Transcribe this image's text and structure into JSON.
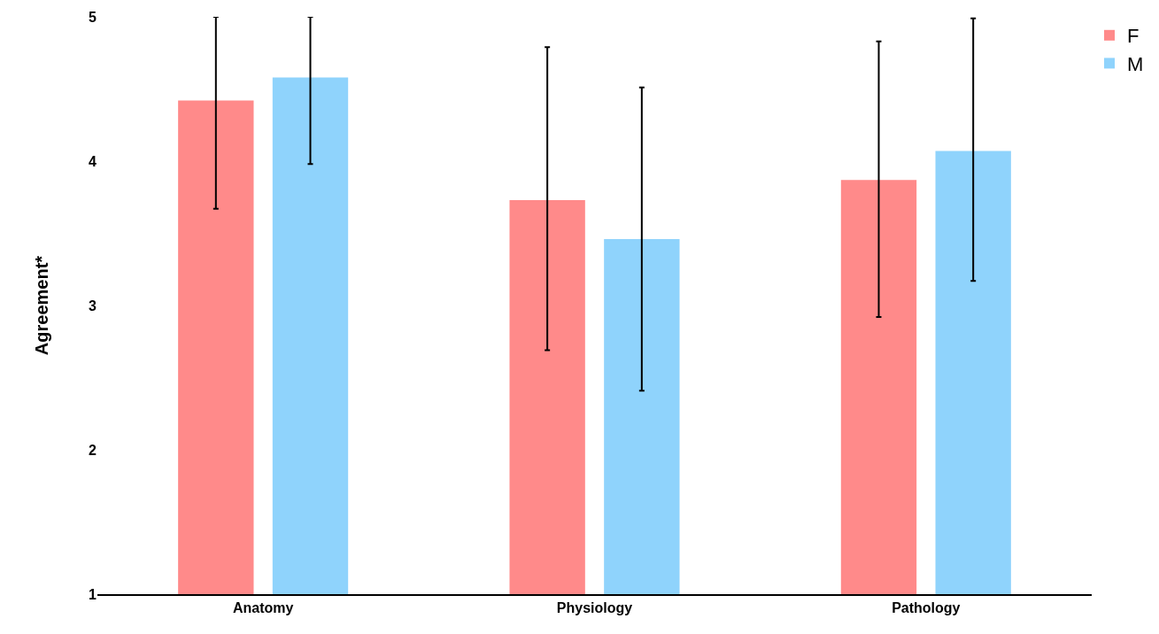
{
  "chart_data": {
    "type": "bar",
    "ylabel": "Agreement*",
    "categories": [
      "Anatomy",
      "Physiology",
      "Pathology"
    ],
    "series": [
      {
        "name": "F",
        "color": "#ff8a8a",
        "values": [
          4.42,
          3.73,
          3.87
        ],
        "errors": [
          [
            3.67,
            5
          ],
          [
            2.69,
            4.79
          ],
          [
            2.92,
            4.83
          ]
        ]
      },
      {
        "name": "M",
        "color": "#8fd3fc",
        "values": [
          4.58,
          3.46,
          4.07
        ],
        "errors": [
          [
            3.98,
            5
          ],
          [
            2.41,
            4.51
          ],
          [
            3.17,
            4.99
          ]
        ]
      }
    ],
    "ylim": [
      1,
      5
    ],
    "yticks": [
      1,
      2,
      3,
      4,
      5
    ],
    "grid": false,
    "legend": "top right"
  }
}
